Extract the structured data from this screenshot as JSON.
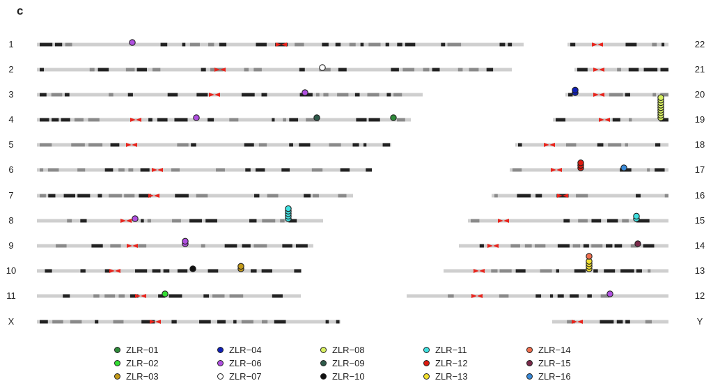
{
  "panel_label": "c",
  "chromosome_labels": {
    "left": [
      "1",
      "2",
      "3",
      "4",
      "5",
      "6",
      "7",
      "8",
      "9",
      "10",
      "11",
      "X"
    ],
    "right": [
      "22",
      "21",
      "20",
      "19",
      "18",
      "17",
      "16",
      "15",
      "14",
      "13",
      "12",
      "Y"
    ]
  },
  "lines": [
    {
      "id": "ZLR-01",
      "label": "ZLR−01",
      "color": "#2e8b3a"
    },
    {
      "id": "ZLR-02",
      "label": "ZLR−02",
      "color": "#33dd33"
    },
    {
      "id": "ZLR-03",
      "label": "ZLR−03",
      "color": "#c39a1a"
    },
    {
      "id": "ZLR-04",
      "label": "ZLR−04",
      "color": "#1020b8"
    },
    {
      "id": "ZLR-06",
      "label": "ZLR−06",
      "color": "#b050e0"
    },
    {
      "id": "ZLR-07",
      "label": "ZLR−07",
      "color": "#ffffff"
    },
    {
      "id": "ZLR-08",
      "label": "ZLR−08",
      "color": "#d8f060"
    },
    {
      "id": "ZLR-09",
      "label": "ZLR−09",
      "color": "#2f5a4a"
    },
    {
      "id": "ZLR-10",
      "label": "ZLR−10",
      "color": "#111111"
    },
    {
      "id": "ZLR-11",
      "label": "ZLR−11",
      "color": "#40e0e0"
    },
    {
      "id": "ZLR-12",
      "label": "ZLR−12",
      "color": "#dd1a10"
    },
    {
      "id": "ZLR-13",
      "label": "ZLR−13",
      "color": "#f2e030"
    },
    {
      "id": "ZLR-14",
      "label": "ZLR−14",
      "color": "#f07050"
    },
    {
      "id": "ZLR-15",
      "label": "ZLR−15",
      "color": "#7a2a4a"
    },
    {
      "id": "ZLR-16",
      "label": "ZLR−16",
      "color": "#3a8ad8"
    }
  ],
  "colors": {
    "centromere": "#e8241c",
    "band_light": "#cfcfcf",
    "band_mid": "#8a8a8a",
    "band_dark": "#222222",
    "marker_outline": "#222222"
  }
}
